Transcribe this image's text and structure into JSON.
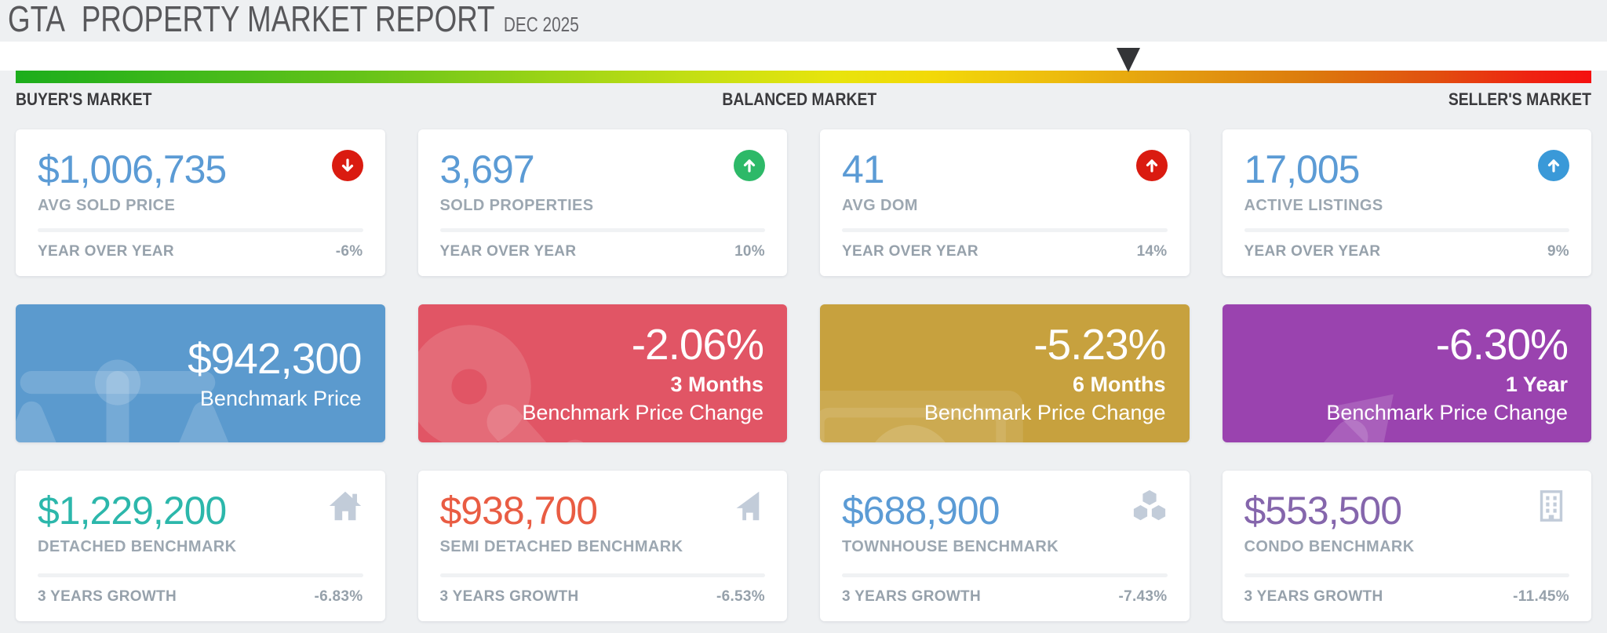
{
  "header": {
    "brand": "GTA",
    "title": "PROPERTY MARKET REPORT",
    "period": "DEC 2025"
  },
  "gauge": {
    "marker_position_pct": 70.2,
    "labels": {
      "left": "BUYER'S MARKET",
      "center": "BALANCED MARKET",
      "right": "SELLER'S MARKET"
    },
    "gradient_colors": [
      "#1cad1c",
      "#f2d908",
      "#f51010"
    ]
  },
  "kpi_cards": [
    {
      "value": "$1,006,735",
      "label": "AVG SOLD PRICE",
      "value_color": "#5b9bd5",
      "trend": "down",
      "trend_icon": "circle-arrow-down-icon",
      "trend_color": "#da1b10",
      "footer_label": "YEAR OVER YEAR",
      "footer_value": "-6%"
    },
    {
      "value": "3,697",
      "label": "SOLD PROPERTIES",
      "value_color": "#5b9bd5",
      "trend": "up",
      "trend_icon": "circle-arrow-up-icon",
      "trend_color": "#2db968",
      "footer_label": "YEAR OVER YEAR",
      "footer_value": "10%"
    },
    {
      "value": "41",
      "label": "AVG DOM",
      "value_color": "#5b9bd5",
      "trend": "up",
      "trend_icon": "circle-arrow-up-icon",
      "trend_color": "#da1b10",
      "footer_label": "YEAR OVER YEAR",
      "footer_value": "14%"
    },
    {
      "value": "17,005",
      "label": "ACTIVE LISTINGS",
      "value_color": "#5b9bd5",
      "trend": "up",
      "trend_icon": "circle-arrow-up-icon",
      "trend_color": "#3a99d8",
      "footer_label": "YEAR OVER YEAR",
      "footer_value": "9%"
    }
  ],
  "benchmark_cards": [
    {
      "value": "$942,300",
      "period": "",
      "label": "Benchmark Price",
      "bg_color": "#5b9ace",
      "icon": "scales-icon"
    },
    {
      "value": "-2.06%",
      "period": "3 Months",
      "label": "Benchmark Price Change",
      "bg_color": "#e15565",
      "icon": "key-icon"
    },
    {
      "value": "-5.23%",
      "period": "6 Months",
      "label": "Benchmark Price Change",
      "bg_color": "#c7a13e",
      "icon": "money-bill-icon"
    },
    {
      "value": "-6.30%",
      "period": "1 Year",
      "label": "Benchmark Price Change",
      "bg_color": "#9a43af",
      "icon": "trend-up-icon"
    }
  ],
  "property_cards": [
    {
      "value": "$1,229,200",
      "label": "DETACHED BENCHMARK",
      "value_color": "#2cb7ab",
      "icon": "house-icon",
      "footer_label": "3 YEARS GROWTH",
      "footer_value": "-6.83%"
    },
    {
      "value": "$938,700",
      "label": "SEMI DETACHED BENCHMARK",
      "value_color": "#e95c43",
      "icon": "semi-detached-house-icon",
      "footer_label": "3 YEARS GROWTH",
      "footer_value": "-6.53%"
    },
    {
      "value": "$688,900",
      "label": "TOWNHOUSE BENCHMARK",
      "value_color": "#5b9bd5",
      "icon": "cubes-icon",
      "footer_label": "3 YEARS GROWTH",
      "footer_value": "-7.43%"
    },
    {
      "value": "$553,500",
      "label": "CONDO BENCHMARK",
      "value_color": "#8566ac",
      "icon": "building-icon",
      "footer_label": "3 YEARS GROWTH",
      "footer_value": "-11.45%"
    }
  ]
}
